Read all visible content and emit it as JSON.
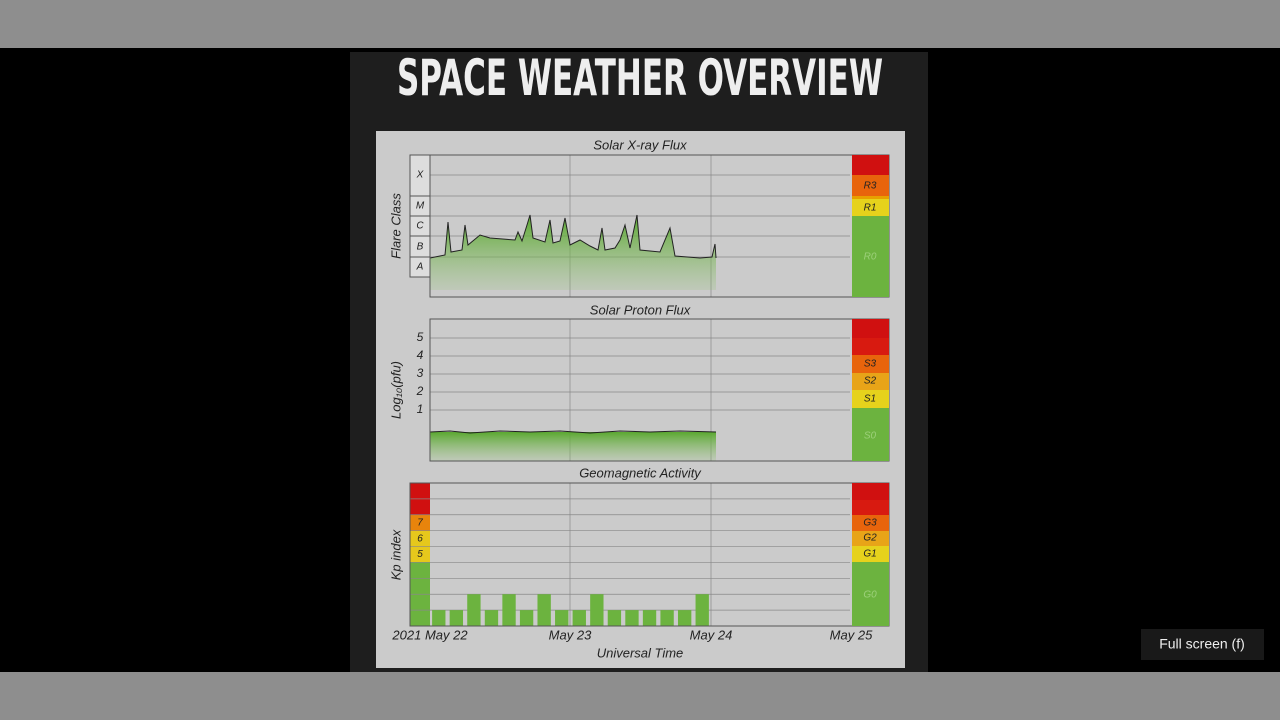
{
  "video": {
    "title": "SPACE WEATHER OVERVIEW",
    "tooltip": "Full screen (f)"
  },
  "panels": {
    "xray": {
      "title": "Solar X-ray Flux",
      "ylabel": "Flare Class",
      "classes": [
        "A",
        "B",
        "C",
        "M",
        "X"
      ],
      "scale": [
        "R3",
        "R1",
        "R0"
      ]
    },
    "proton": {
      "title": "Solar Proton Flux",
      "ylabel": "Log₁₀(pfu)",
      "ticks": [
        "1",
        "2",
        "3",
        "4",
        "5"
      ],
      "scale": [
        "S3",
        "S2",
        "S1",
        "S0"
      ]
    },
    "geo": {
      "title": "Geomagnetic Activity",
      "scale": [
        "G3",
        "G2",
        "G1",
        "G0"
      ]
    }
  },
  "xaxis": {
    "labels": [
      "2021 May 22",
      "May 23",
      "May 24",
      "May 25"
    ],
    "title": "Universal Time"
  },
  "chart_data": {
    "type": "bar",
    "ylabel": "Kp index",
    "ylim": [
      0,
      9
    ],
    "yticks": [
      5,
      6,
      7
    ],
    "color": "#6cb33f",
    "values": [
      1,
      1,
      2,
      1,
      2,
      1,
      2,
      1,
      1,
      2,
      1,
      1,
      1,
      1,
      1,
      2
    ]
  }
}
